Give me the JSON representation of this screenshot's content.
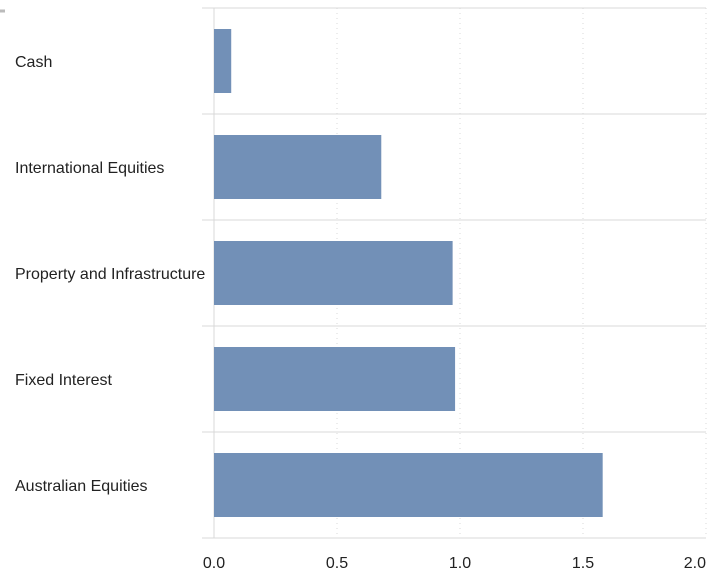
{
  "chart_data": {
    "type": "bar",
    "orientation": "horizontal",
    "categories": [
      "Cash",
      "International Equities",
      "Property and Infrastructure",
      "Fixed Interest",
      "Australian Equities"
    ],
    "values": [
      0.07,
      0.68,
      0.97,
      0.98,
      1.58
    ],
    "xlim": [
      0,
      2.0
    ],
    "xticks": [
      "0.0",
      "0.5",
      "1.0",
      "1.5",
      "2.0"
    ],
    "title": "",
    "xlabel": "",
    "ylabel": "",
    "grid": "vertical dotted",
    "bar_color": "#7290b7",
    "grid_color": "#d9d9d9"
  }
}
